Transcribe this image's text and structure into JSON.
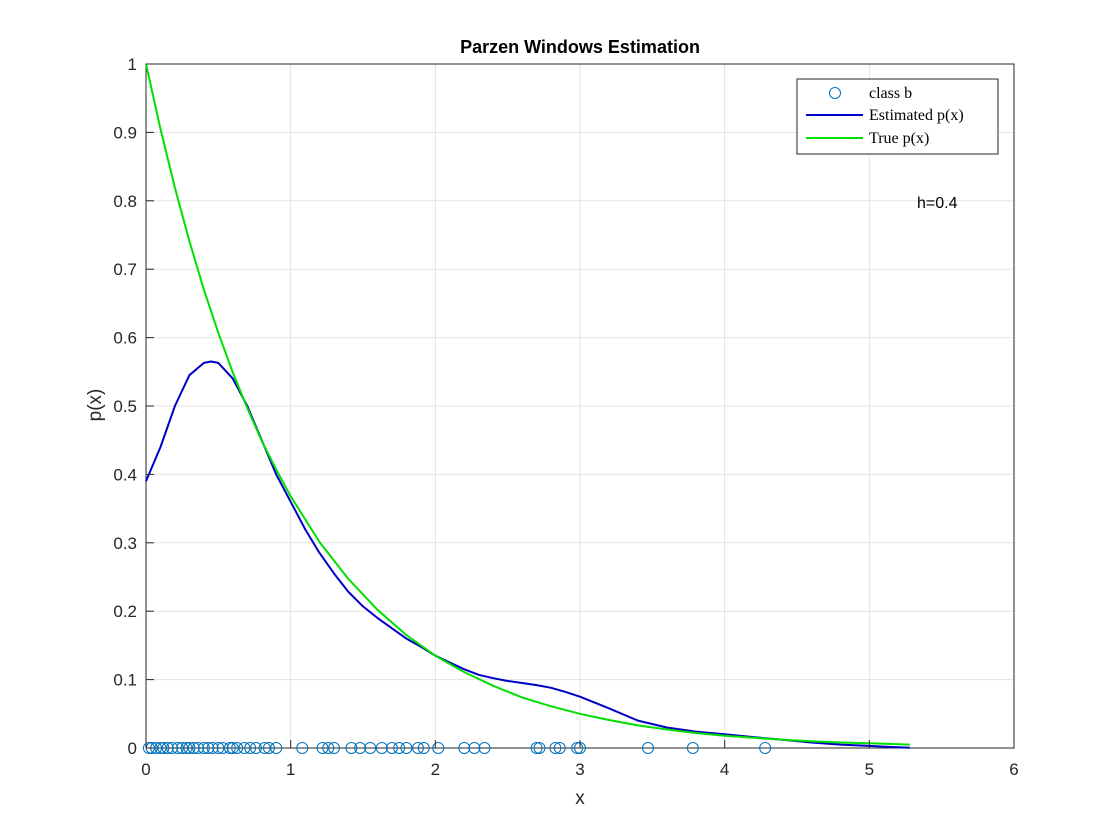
{
  "chart_data": {
    "type": "line",
    "title": "Parzen Windows Estimation",
    "xlabel": "x",
    "ylabel": "p(x)",
    "xlim": [
      0,
      6
    ],
    "ylim": [
      0,
      1
    ],
    "xticks": [
      0,
      1,
      2,
      3,
      4,
      5,
      6
    ],
    "yticks": [
      0,
      0.1,
      0.2,
      0.3,
      0.4,
      0.5,
      0.6,
      0.7,
      0.8,
      0.9,
      1
    ],
    "grid": true,
    "legend_position": "top-right",
    "annotation": "h=0.4",
    "series": [
      {
        "name": "class b",
        "kind": "scatter",
        "marker": "circle",
        "color": "#0072bd",
        "x": [
          0.02,
          0.04,
          0.07,
          0.1,
          0.12,
          0.15,
          0.18,
          0.22,
          0.25,
          0.28,
          0.3,
          0.33,
          0.36,
          0.4,
          0.43,
          0.46,
          0.5,
          0.53,
          0.58,
          0.6,
          0.63,
          0.68,
          0.72,
          0.76,
          0.82,
          0.85,
          0.9,
          1.08,
          1.22,
          1.26,
          1.3,
          1.42,
          1.48,
          1.55,
          1.63,
          1.7,
          1.75,
          1.8,
          1.88,
          1.92,
          2.02,
          2.2,
          2.27,
          2.34,
          2.7,
          2.72,
          2.83,
          2.86,
          2.98,
          3.0,
          3.47,
          3.78,
          4.28
        ],
        "y": [
          0,
          0,
          0,
          0,
          0,
          0,
          0,
          0,
          0,
          0,
          0,
          0,
          0,
          0,
          0,
          0,
          0,
          0,
          0,
          0,
          0,
          0,
          0,
          0,
          0,
          0,
          0,
          0,
          0,
          0,
          0,
          0,
          0,
          0,
          0,
          0,
          0,
          0,
          0,
          0,
          0,
          0,
          0,
          0,
          0,
          0,
          0,
          0,
          0,
          0,
          0,
          0,
          0
        ]
      },
      {
        "name": "Estimated p(x)",
        "kind": "line",
        "color": "#0000c8",
        "x": [
          0,
          0.1,
          0.2,
          0.3,
          0.4,
          0.45,
          0.5,
          0.6,
          0.7,
          0.8,
          0.9,
          1.0,
          1.1,
          1.2,
          1.3,
          1.4,
          1.5,
          1.6,
          1.7,
          1.8,
          1.9,
          2.0,
          2.1,
          2.2,
          2.3,
          2.4,
          2.5,
          2.6,
          2.7,
          2.8,
          2.9,
          3.0,
          3.2,
          3.4,
          3.6,
          3.8,
          4.0,
          4.2,
          4.4,
          4.6,
          4.8,
          5.0,
          5.2,
          5.28
        ],
        "y": [
          0.39,
          0.44,
          0.5,
          0.545,
          0.563,
          0.565,
          0.563,
          0.54,
          0.5,
          0.45,
          0.4,
          0.36,
          0.32,
          0.285,
          0.255,
          0.228,
          0.207,
          0.19,
          0.175,
          0.16,
          0.148,
          0.135,
          0.125,
          0.115,
          0.107,
          0.102,
          0.098,
          0.095,
          0.092,
          0.088,
          0.082,
          0.075,
          0.058,
          0.04,
          0.03,
          0.024,
          0.02,
          0.016,
          0.012,
          0.008,
          0.005,
          0.003,
          0.001,
          0.0005
        ]
      },
      {
        "name": "True p(x)",
        "kind": "line",
        "color": "#00e000",
        "x": [
          0,
          0.1,
          0.2,
          0.3,
          0.4,
          0.5,
          0.6,
          0.7,
          0.8,
          0.9,
          1.0,
          1.2,
          1.4,
          1.6,
          1.8,
          2.0,
          2.2,
          2.4,
          2.6,
          2.8,
          3.0,
          3.2,
          3.4,
          3.6,
          3.8,
          4.0,
          4.2,
          4.4,
          4.6,
          4.8,
          5.0,
          5.28
        ],
        "y": [
          1.0,
          0.905,
          0.819,
          0.741,
          0.67,
          0.607,
          0.549,
          0.497,
          0.449,
          0.407,
          0.368,
          0.301,
          0.247,
          0.202,
          0.165,
          0.135,
          0.111,
          0.091,
          0.074,
          0.061,
          0.05,
          0.041,
          0.033,
          0.027,
          0.022,
          0.018,
          0.015,
          0.012,
          0.01,
          0.008,
          0.007,
          0.005
        ]
      }
    ]
  }
}
